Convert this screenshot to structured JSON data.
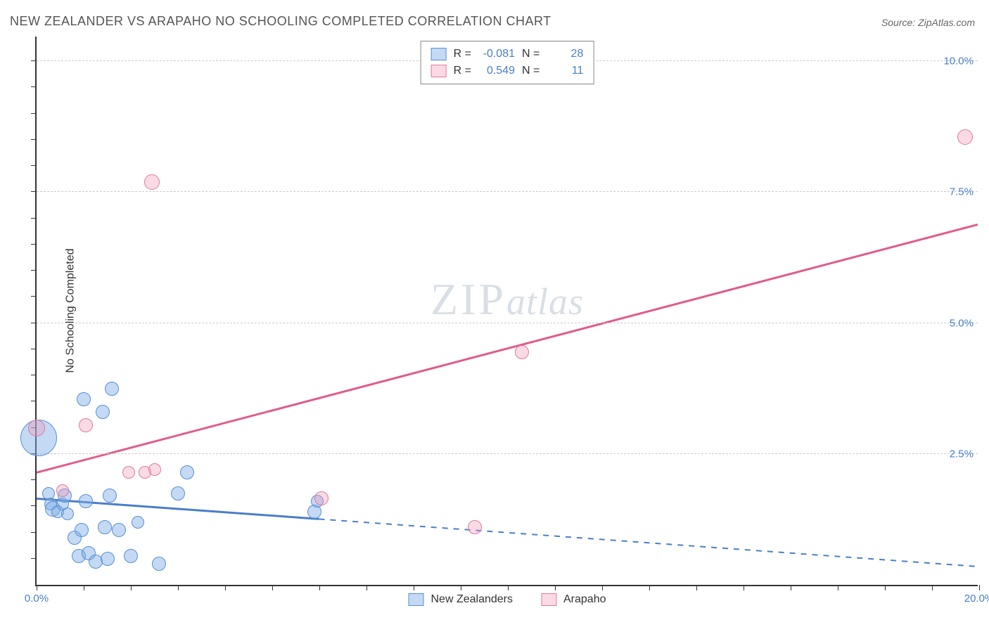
{
  "chart": {
    "type": "scatter",
    "title": "NEW ZEALANDER VS ARAPAHO NO SCHOOLING COMPLETED CORRELATION CHART",
    "source_label": "Source: ZipAtlas.com",
    "y_axis_label": "No Schooling Completed",
    "watermark_a": "ZIP",
    "watermark_b": "atlas",
    "background_color": "#ffffff",
    "grid_color": "#cccccc",
    "axis_color": "#333333",
    "text_color": "#333333",
    "value_color": "#4a7ec9",
    "xlim": [
      0,
      20
    ],
    "ylim": [
      0,
      10.5
    ],
    "x_ticks": [
      0,
      1,
      2,
      3,
      4,
      5,
      6,
      7,
      8,
      9,
      10,
      11,
      12,
      13,
      14,
      15,
      16,
      17,
      18,
      19,
      20
    ],
    "x_tick_labels": {
      "0": "0.0%",
      "20": "20.0%"
    },
    "y_gridlines": [
      2.5,
      5.0,
      7.5,
      10.0
    ],
    "y_tick_labels": {
      "2.5": "2.5%",
      "5.0": "5.0%",
      "7.5": "7.5%",
      "10.0": "10.0%"
    },
    "y_minor_ticks": [
      0.5,
      1,
      1.5,
      2,
      2.5,
      3,
      3.5,
      4,
      4.5,
      5,
      5.5,
      6,
      6.5,
      7,
      7.5,
      8,
      8.5,
      9,
      9.5,
      10
    ]
  },
  "stats": {
    "series1": {
      "r_label": "R =",
      "r_value": "-0.081",
      "n_label": "N =",
      "n_value": "28"
    },
    "series2": {
      "r_label": "R =",
      "r_value": "0.549",
      "n_label": "N =",
      "n_value": "11"
    }
  },
  "legend": {
    "series1_label": "New Zealanders",
    "series2_label": "Arapaho"
  },
  "series": {
    "new_zealanders": {
      "color_fill": "rgba(122,171,230,0.45)",
      "color_stroke": "#5a8fd0",
      "trend": {
        "x1": 0,
        "y1": 1.65,
        "x2": 20,
        "y2": 0.35,
        "solid_until_x": 6.0,
        "stroke": "#4a7ec9",
        "width": 3
      },
      "points": [
        {
          "x": 0.05,
          "y": 2.8,
          "r": 26
        },
        {
          "x": 0.25,
          "y": 1.75,
          "r": 9
        },
        {
          "x": 0.3,
          "y": 1.55,
          "r": 9
        },
        {
          "x": 0.35,
          "y": 1.45,
          "r": 11
        },
        {
          "x": 0.45,
          "y": 1.4,
          "r": 9
        },
        {
          "x": 0.55,
          "y": 1.55,
          "r": 9
        },
        {
          "x": 0.6,
          "y": 1.7,
          "r": 10
        },
        {
          "x": 0.65,
          "y": 1.35,
          "r": 9
        },
        {
          "x": 0.8,
          "y": 0.9,
          "r": 10
        },
        {
          "x": 0.9,
          "y": 0.55,
          "r": 10
        },
        {
          "x": 0.95,
          "y": 1.05,
          "r": 10
        },
        {
          "x": 1.0,
          "y": 3.55,
          "r": 10
        },
        {
          "x": 1.05,
          "y": 1.6,
          "r": 10
        },
        {
          "x": 1.1,
          "y": 0.6,
          "r": 10
        },
        {
          "x": 1.25,
          "y": 0.45,
          "r": 10
        },
        {
          "x": 1.4,
          "y": 3.3,
          "r": 10
        },
        {
          "x": 1.45,
          "y": 1.1,
          "r": 10
        },
        {
          "x": 1.5,
          "y": 0.5,
          "r": 10
        },
        {
          "x": 1.55,
          "y": 1.7,
          "r": 10
        },
        {
          "x": 1.6,
          "y": 3.75,
          "r": 10
        },
        {
          "x": 1.75,
          "y": 1.05,
          "r": 10
        },
        {
          "x": 2.0,
          "y": 0.55,
          "r": 10
        },
        {
          "x": 2.15,
          "y": 1.2,
          "r": 9
        },
        {
          "x": 2.6,
          "y": 0.4,
          "r": 10
        },
        {
          "x": 3.0,
          "y": 1.75,
          "r": 10
        },
        {
          "x": 3.2,
          "y": 2.15,
          "r": 10
        },
        {
          "x": 5.9,
          "y": 1.4,
          "r": 10
        },
        {
          "x": 5.95,
          "y": 1.6,
          "r": 9
        }
      ]
    },
    "arapaho": {
      "color_fill": "rgba(240,150,180,0.35)",
      "color_stroke": "#e07aa0",
      "trend": {
        "x1": 0,
        "y1": 2.15,
        "x2": 20,
        "y2": 6.9,
        "solid_until_x": 20,
        "stroke": "#e15b8c",
        "width": 3
      },
      "points": [
        {
          "x": 0.0,
          "y": 3.0,
          "r": 12
        },
        {
          "x": 0.55,
          "y": 1.8,
          "r": 9
        },
        {
          "x": 1.05,
          "y": 3.05,
          "r": 10
        },
        {
          "x": 1.95,
          "y": 2.15,
          "r": 9
        },
        {
          "x": 2.3,
          "y": 2.15,
          "r": 9
        },
        {
          "x": 2.45,
          "y": 7.7,
          "r": 11
        },
        {
          "x": 2.5,
          "y": 2.2,
          "r": 9
        },
        {
          "x": 6.05,
          "y": 1.65,
          "r": 10
        },
        {
          "x": 9.3,
          "y": 1.1,
          "r": 10
        },
        {
          "x": 10.3,
          "y": 4.45,
          "r": 10
        },
        {
          "x": 19.7,
          "y": 8.55,
          "r": 11
        }
      ]
    }
  }
}
